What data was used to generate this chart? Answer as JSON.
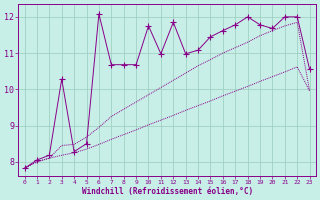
{
  "xlabel": "Windchill (Refroidissement éolien,°C)",
  "bg_color": "#c8eee8",
  "line_color": "#880088",
  "grid_color": "#99ccbb",
  "xlim_min": -0.5,
  "xlim_max": 23.5,
  "ylim_min": 7.6,
  "ylim_max": 12.35,
  "yticks": [
    8,
    9,
    10,
    11,
    12
  ],
  "xticks": [
    0,
    1,
    2,
    3,
    4,
    5,
    6,
    7,
    8,
    9,
    10,
    11,
    12,
    13,
    14,
    15,
    16,
    17,
    18,
    19,
    20,
    21,
    22,
    23
  ],
  "x": [
    0,
    1,
    2,
    3,
    4,
    5,
    6,
    7,
    8,
    9,
    10,
    11,
    12,
    13,
    14,
    15,
    16,
    17,
    18,
    19,
    20,
    21,
    22,
    23
  ],
  "line_low": [
    7.82,
    8.0,
    8.1,
    8.18,
    8.25,
    8.35,
    8.48,
    8.62,
    8.75,
    8.88,
    9.02,
    9.15,
    9.28,
    9.42,
    9.55,
    9.68,
    9.82,
    9.95,
    10.08,
    10.22,
    10.35,
    10.48,
    10.62,
    9.95
  ],
  "line_mid": [
    7.82,
    8.0,
    8.1,
    8.45,
    8.48,
    8.68,
    8.95,
    9.25,
    9.45,
    9.65,
    9.85,
    10.05,
    10.25,
    10.45,
    10.65,
    10.82,
    11.0,
    11.15,
    11.3,
    11.48,
    11.62,
    11.75,
    11.85,
    9.95
  ],
  "line_zigzag": [
    7.82,
    8.05,
    8.18,
    10.28,
    8.28,
    8.5,
    12.08,
    10.68,
    10.68,
    10.68,
    11.75,
    10.98,
    11.85,
    10.98,
    11.08,
    11.45,
    11.62,
    11.78,
    12.0,
    11.78,
    11.68,
    12.0,
    12.0,
    10.55
  ]
}
